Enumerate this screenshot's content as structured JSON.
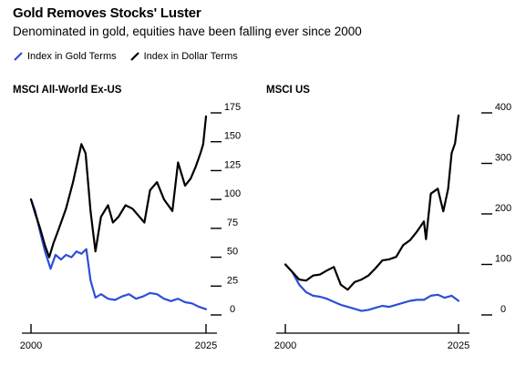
{
  "title": "Gold Removes Stocks' Luster",
  "subtitle": "Denominated in gold, equities have been falling ever since 2000",
  "legend": [
    {
      "label": "Index in Gold Terms",
      "color": "#2c4fd6"
    },
    {
      "label": "Index in Dollar Terms",
      "color": "#000000"
    }
  ],
  "colors": {
    "gold": "#2c4fd6",
    "dollar": "#000000",
    "axis": "#000000"
  },
  "chart_data": [
    {
      "type": "line",
      "title": "MSCI All-World Ex-US",
      "xlim": [
        2000,
        2025
      ],
      "ylim": [
        0,
        175
      ],
      "x_ticks": [
        2000,
        2025
      ],
      "y_ticks": [
        0,
        25,
        50,
        75,
        100,
        125,
        150,
        175
      ],
      "y_axis_side": "right",
      "series": [
        {
          "name": "Index in Gold Terms",
          "color": "#2c4fd6",
          "x": [
            2000,
            2000.6,
            2001.3,
            2002,
            2002.8,
            2003.5,
            2004.3,
            2005,
            2005.8,
            2006.5,
            2007.2,
            2007.9,
            2008.5,
            2009.2,
            2010,
            2011,
            2012,
            2013,
            2014,
            2015,
            2016,
            2017,
            2018,
            2019,
            2020,
            2021,
            2022,
            2023,
            2024,
            2025
          ],
          "y": [
            100,
            90,
            72,
            55,
            40,
            52,
            48,
            52,
            50,
            55,
            53,
            57,
            30,
            15,
            18,
            14,
            13,
            16,
            18,
            14,
            16,
            19,
            18,
            14,
            12,
            14,
            11,
            10,
            7,
            5
          ]
        },
        {
          "name": "Index in Dollar Terms",
          "color": "#000000",
          "x": [
            2000,
            2000.6,
            2001.3,
            2002,
            2002.6,
            2003.2,
            2004,
            2005,
            2006,
            2007.2,
            2007.8,
            2008.5,
            2009.2,
            2010,
            2011,
            2011.7,
            2012.5,
            2013.5,
            2014.5,
            2015.5,
            2016.2,
            2017,
            2018,
            2019,
            2020.2,
            2021,
            2022,
            2022.8,
            2023.5,
            2024.2,
            2024.6,
            2025
          ],
          "y": [
            100,
            88,
            75,
            60,
            50,
            62,
            75,
            92,
            115,
            148,
            140,
            90,
            55,
            85,
            95,
            80,
            85,
            95,
            92,
            85,
            80,
            108,
            115,
            100,
            90,
            132,
            112,
            118,
            128,
            140,
            148,
            172
          ]
        }
      ]
    },
    {
      "type": "line",
      "title": "MSCI US",
      "xlim": [
        2000,
        2025
      ],
      "ylim": [
        0,
        400
      ],
      "x_ticks": [
        2000,
        2025
      ],
      "y_ticks": [
        0,
        100,
        200,
        300,
        400
      ],
      "y_axis_side": "right",
      "series": [
        {
          "name": "Index in Gold Terms",
          "color": "#2c4fd6",
          "x": [
            2000,
            2001,
            2002,
            2003,
            2004,
            2005,
            2006,
            2007,
            2008,
            2009,
            2010,
            2011,
            2012,
            2013,
            2014,
            2015,
            2016,
            2017,
            2018,
            2019,
            2020,
            2021,
            2022,
            2023,
            2024,
            2025
          ],
          "y": [
            100,
            85,
            60,
            45,
            38,
            36,
            32,
            26,
            20,
            16,
            12,
            8,
            10,
            14,
            18,
            16,
            20,
            24,
            28,
            30,
            30,
            38,
            40,
            34,
            38,
            28
          ]
        },
        {
          "name": "Index in Dollar Terms",
          "color": "#000000",
          "x": [
            2000,
            2001,
            2002,
            2003,
            2004,
            2005,
            2006,
            2007,
            2008,
            2009,
            2010,
            2011,
            2012,
            2013,
            2014,
            2015,
            2016,
            2017,
            2018,
            2019,
            2020,
            2020.3,
            2021,
            2022,
            2022.8,
            2023.5,
            2024,
            2024.5,
            2025
          ],
          "y": [
            100,
            85,
            70,
            68,
            78,
            80,
            88,
            95,
            60,
            50,
            65,
            70,
            78,
            92,
            108,
            110,
            115,
            138,
            148,
            165,
            185,
            150,
            240,
            250,
            205,
            250,
            320,
            340,
            395
          ]
        }
      ]
    }
  ]
}
